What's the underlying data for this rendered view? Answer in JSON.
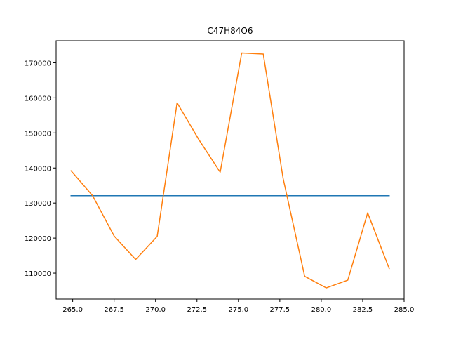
{
  "chart_data": {
    "type": "line",
    "title": "C47H84O6",
    "xlabel": "",
    "ylabel": "",
    "xlim": [
      264.0,
      285.0
    ],
    "ylim": [
      102600,
      176300
    ],
    "x_ticks": [
      265.0,
      267.5,
      270.0,
      272.5,
      275.0,
      277.5,
      280.0,
      282.5,
      285.0
    ],
    "x_tick_labels": [
      "265.0",
      "267.5",
      "270.0",
      "272.5",
      "275.0",
      "277.5",
      "280.0",
      "282.5",
      "285.0"
    ],
    "y_ticks": [
      110000,
      120000,
      130000,
      140000,
      150000,
      160000,
      170000
    ],
    "y_tick_labels": [
      "110000",
      "120000",
      "130000",
      "140000",
      "150000",
      "160000",
      "170000"
    ],
    "grid": false,
    "series": [
      {
        "color": "#1f77b4",
        "x": [
          264.9,
          284.1
        ],
        "y": [
          132100,
          132100
        ]
      },
      {
        "color": "#ff7f0e",
        "x": [
          264.9,
          266.2,
          267.5,
          268.8,
          270.1,
          271.3,
          272.6,
          273.9,
          275.2,
          276.5,
          277.7,
          279.0,
          280.3,
          281.6,
          282.8,
          284.1
        ],
        "y": [
          139200,
          132100,
          120600,
          113900,
          120500,
          158600,
          148200,
          138800,
          172800,
          172500,
          137000,
          109100,
          105800,
          108000,
          127200,
          111300
        ]
      }
    ]
  }
}
